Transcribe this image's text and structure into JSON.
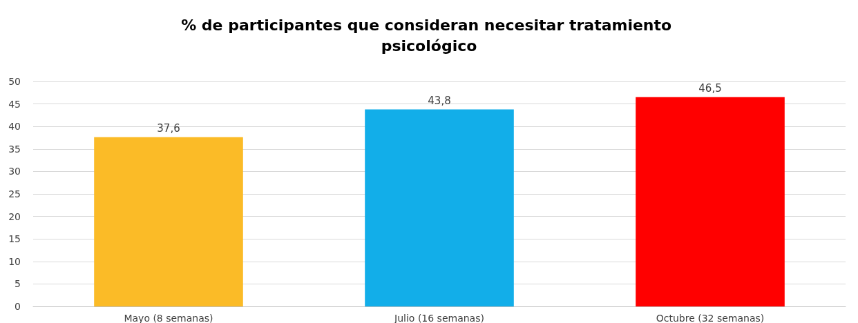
{
  "chart_data": {
    "type": "bar",
    "title": "% de participantes que consideran necesitar tratamiento psicológico",
    "categories": [
      "Mayo (8 semanas)",
      "Julio (16 semanas)",
      "Octubre (32 semanas)"
    ],
    "values": [
      37.6,
      43.8,
      46.5
    ],
    "value_labels": [
      "37,6",
      "43,8",
      "46,5"
    ],
    "colors": [
      "#fbbb27",
      "#12aee9",
      "#ff0000"
    ],
    "ylim": [
      0,
      50
    ],
    "yticks": [
      0,
      5,
      10,
      15,
      20,
      25,
      30,
      35,
      40,
      45,
      50
    ],
    "grid": "y"
  }
}
